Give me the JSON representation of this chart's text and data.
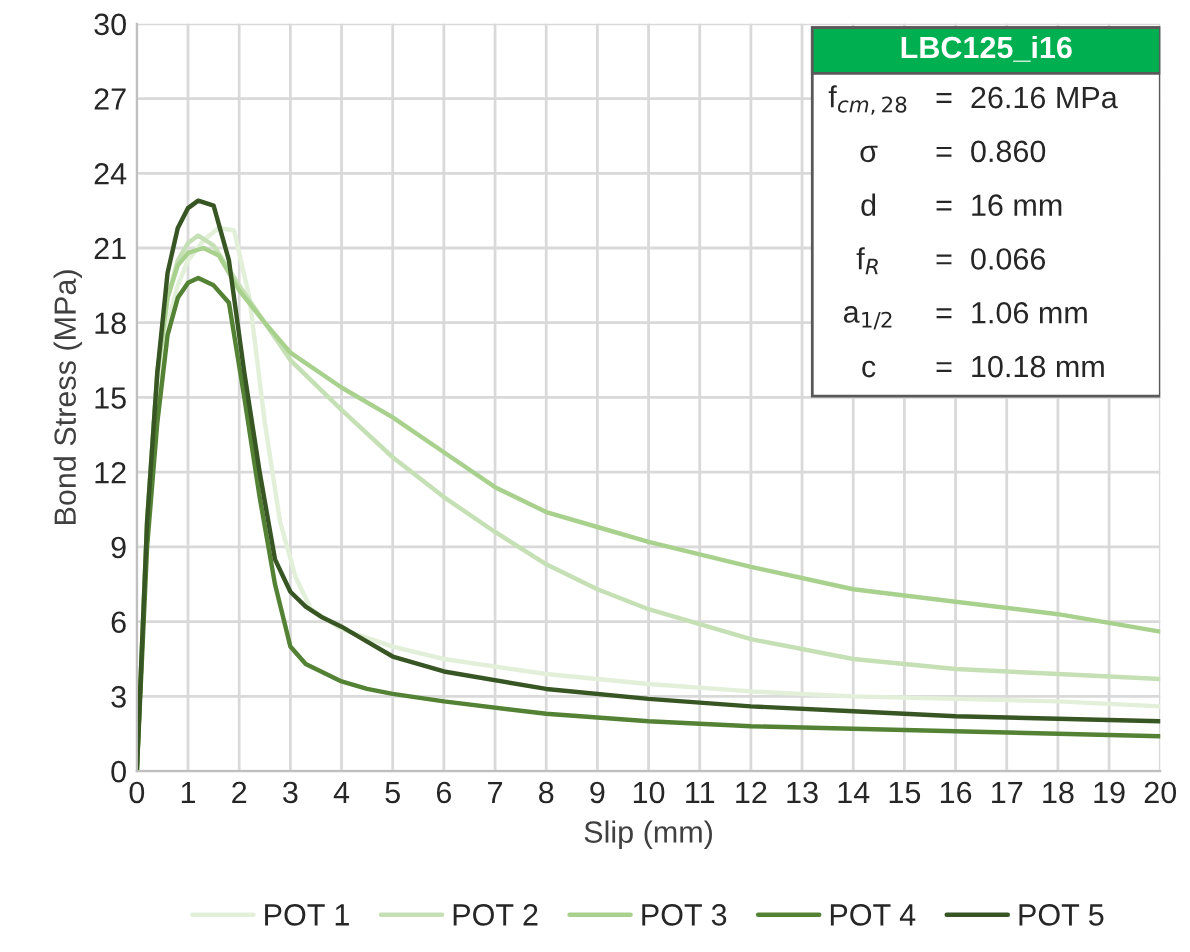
{
  "chart_data": {
    "type": "line",
    "xlabel": "Slip (mm)",
    "ylabel": "Bond Stress (MPa)",
    "xlim": [
      0,
      20
    ],
    "ylim": [
      0,
      30
    ],
    "xticks": [
      0,
      1,
      2,
      3,
      4,
      5,
      6,
      7,
      8,
      9,
      10,
      11,
      12,
      13,
      14,
      15,
      16,
      17,
      18,
      19,
      20
    ],
    "yticks": [
      0,
      3,
      6,
      9,
      12,
      15,
      18,
      21,
      24,
      27,
      30
    ],
    "grid": true,
    "legend": "bottom",
    "marker": "none",
    "line_style": "solid",
    "annotations": [
      "LBC125_i16",
      "f$_{cm,28}$ = 26.16 MPa",
      "σ = 0.860",
      "d = 16 mm",
      "f$_{R}$ = 0.066",
      "a$_{1/2}$ = 1.06 mm",
      "c = 10.18 mm"
    ],
    "series": [
      {
        "name": "POT 1",
        "color": "#e2f0d9",
        "x": [
          0,
          0.2,
          0.4,
          0.6,
          0.8,
          1.0,
          1.3,
          1.6,
          1.9,
          2.2,
          2.5,
          2.8,
          3.1,
          3.4,
          4,
          5,
          6,
          8,
          10,
          12,
          14,
          16,
          18,
          20
        ],
        "values": [
          0,
          10,
          15,
          18,
          19.5,
          20.5,
          21.3,
          21.8,
          21.7,
          19,
          14,
          10,
          7.8,
          6.5,
          5.7,
          5,
          4.5,
          3.9,
          3.5,
          3.2,
          3,
          2.9,
          2.8,
          2.6
        ]
      },
      {
        "name": "POT 2",
        "color": "#c5e0b4",
        "x": [
          0,
          0.2,
          0.4,
          0.6,
          0.8,
          1.0,
          1.2,
          1.5,
          2,
          2.5,
          3,
          4,
          5,
          6,
          7,
          8,
          9,
          10,
          12,
          14,
          16,
          18,
          20
        ],
        "values": [
          0,
          10,
          16,
          19,
          20.5,
          21.2,
          21.5,
          21.1,
          19.5,
          18,
          16.5,
          14.5,
          12.6,
          11,
          9.6,
          8.3,
          7.3,
          6.5,
          5.3,
          4.5,
          4.1,
          3.9,
          3.7
        ]
      },
      {
        "name": "POT 3",
        "color": "#a9d18e",
        "x": [
          0,
          0.2,
          0.4,
          0.6,
          0.8,
          1.0,
          1.3,
          1.6,
          2,
          2.5,
          3,
          4,
          5,
          6,
          7,
          8,
          9,
          10,
          12,
          14,
          16,
          18,
          20
        ],
        "values": [
          0,
          10,
          16,
          19,
          20.3,
          20.8,
          21,
          20.7,
          19.3,
          18,
          16.8,
          15.4,
          14.2,
          12.8,
          11.4,
          10.4,
          9.8,
          9.2,
          8.2,
          7.3,
          6.8,
          6.3,
          5.6
        ]
      },
      {
        "name": "POT 4",
        "color": "#548235",
        "x": [
          0,
          0.2,
          0.4,
          0.6,
          0.8,
          1.0,
          1.2,
          1.5,
          1.8,
          2.1,
          2.4,
          2.7,
          3.0,
          3.3,
          3.6,
          4,
          4.5,
          5,
          6,
          8,
          10,
          12,
          14,
          16,
          18,
          20
        ],
        "values": [
          0,
          9,
          14,
          17.5,
          19,
          19.6,
          19.8,
          19.5,
          18.8,
          15,
          11,
          7.5,
          5,
          4.3,
          4,
          3.6,
          3.3,
          3.1,
          2.8,
          2.3,
          2,
          1.8,
          1.7,
          1.6,
          1.5,
          1.4
        ]
      },
      {
        "name": "POT 5",
        "color": "#375623",
        "x": [
          0,
          0.2,
          0.4,
          0.6,
          0.8,
          1.0,
          1.2,
          1.5,
          1.8,
          2.1,
          2.4,
          2.7,
          3.0,
          3.3,
          3.6,
          4,
          4.5,
          5,
          6,
          8,
          10,
          12,
          14,
          16,
          18,
          20
        ],
        "values": [
          0,
          10,
          16,
          20,
          21.8,
          22.6,
          22.9,
          22.7,
          20.5,
          16,
          12,
          8.5,
          7.2,
          6.6,
          6.2,
          5.8,
          5.2,
          4.6,
          4,
          3.3,
          2.9,
          2.6,
          2.4,
          2.2,
          2.1,
          2.0
        ]
      }
    ]
  }
}
